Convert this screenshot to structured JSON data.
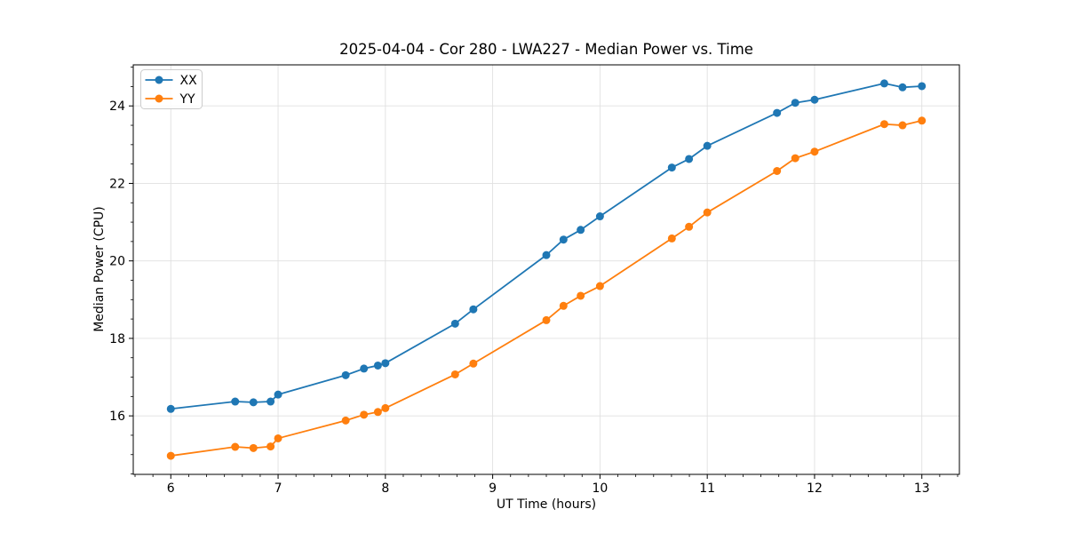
{
  "chart_data": {
    "type": "line",
    "title": "2025-04-04 - Cor 280 - LWA227 - Median Power vs. Time",
    "xlabel": "UT Time (hours)",
    "ylabel": "Median Power (CPU)",
    "xlim": [
      5.65,
      13.35
    ],
    "ylim": [
      14.49,
      25.06
    ],
    "x_major_ticks": [
      6,
      7,
      8,
      9,
      10,
      11,
      12,
      13
    ],
    "y_major_ticks": [
      16,
      18,
      20,
      22,
      24
    ],
    "x_minor_step": 0.166667,
    "y_minor_step": 0.5,
    "grid": true,
    "grid_color": "#e0e0e0",
    "spine_color": "#000000",
    "legend_position": "upper-left",
    "legend_border_color": "#cccccc",
    "series": [
      {
        "name": "XX",
        "color": "#1f77b4",
        "marker": "circle",
        "x": [
          6.0,
          6.6,
          6.77,
          6.93,
          7.0,
          7.63,
          7.8,
          7.93,
          8.0,
          8.65,
          8.82,
          9.5,
          9.66,
          9.82,
          10.0,
          10.67,
          10.83,
          11.0,
          11.65,
          11.82,
          12.0,
          12.65,
          12.82,
          13.0
        ],
        "y": [
          16.18,
          16.37,
          16.35,
          16.37,
          16.55,
          17.05,
          17.22,
          17.3,
          17.36,
          18.38,
          18.75,
          20.15,
          20.55,
          20.8,
          21.15,
          22.41,
          22.63,
          22.97,
          23.82,
          24.08,
          24.16,
          24.58,
          24.48,
          24.51
        ]
      },
      {
        "name": "YY",
        "color": "#ff7f0e",
        "marker": "circle",
        "x": [
          6.0,
          6.6,
          6.77,
          6.93,
          7.0,
          7.63,
          7.8,
          7.93,
          8.0,
          8.65,
          8.82,
          9.5,
          9.66,
          9.82,
          10.0,
          10.67,
          10.83,
          11.0,
          11.65,
          11.82,
          12.0,
          12.65,
          12.82,
          13.0
        ],
        "y": [
          14.97,
          15.2,
          15.17,
          15.21,
          15.42,
          15.88,
          16.03,
          16.1,
          16.2,
          17.07,
          17.35,
          18.47,
          18.84,
          19.1,
          19.35,
          20.58,
          20.88,
          21.25,
          22.32,
          22.65,
          22.82,
          23.53,
          23.5,
          23.62
        ]
      }
    ]
  }
}
